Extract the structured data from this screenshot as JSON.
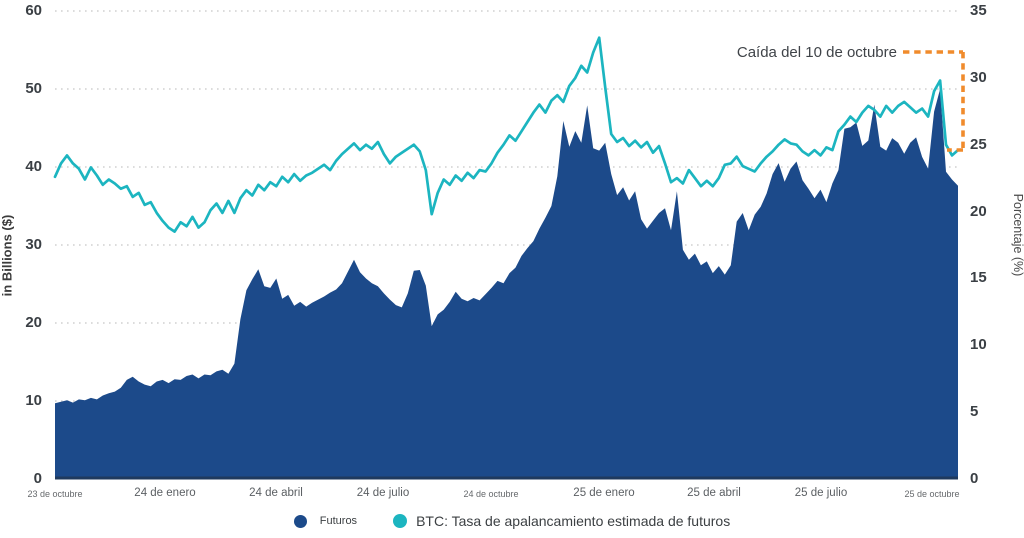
{
  "chart_data": {
    "type": "combo",
    "title": "",
    "x_axis": {
      "labels": [
        {
          "text": "23 de octubre",
          "pos": 55,
          "small": true
        },
        {
          "text": "24 de enero",
          "pos": 165,
          "small": false
        },
        {
          "text": "24 de abril",
          "pos": 276,
          "small": false
        },
        {
          "text": "24 de julio",
          "pos": 383,
          "small": false
        },
        {
          "text": "24 de octubre",
          "pos": 491,
          "small": true
        },
        {
          "text": "25 de enero",
          "pos": 604,
          "small": false
        },
        {
          "text": "25 de abril",
          "pos": 714,
          "small": false
        },
        {
          "text": "25 de julio",
          "pos": 821,
          "small": false
        },
        {
          "text": "25 de octubre",
          "pos": 932,
          "small": true
        }
      ]
    },
    "left_axis": {
      "title": "in Billions ($)",
      "range": [
        0,
        60
      ],
      "ticks": [
        60,
        50,
        40,
        30,
        20,
        10,
        0
      ]
    },
    "right_axis": {
      "title": "Porcentaje (%)",
      "range": [
        0,
        35
      ],
      "ticks": [
        35,
        30,
        25,
        20,
        15,
        10,
        5,
        0
      ]
    },
    "grid": "dotted horizontal lines at left-axis ticks",
    "legend_position": "bottom-center",
    "annotation": {
      "text": "Caída del 10 de octubre",
      "color": "#f08b2c"
    },
    "colors": {
      "grid": "#c8c8c8",
      "tick_text": "#3a3f44",
      "date_text": "#5b5f63",
      "baseline": "#1f3a5e"
    },
    "series": [
      {
        "name": "Futuros",
        "type": "area",
        "axis": "left",
        "unit": "billions_usd",
        "color": "#1c4a8a",
        "values": [
          9.7,
          9.9,
          10.1,
          9.8,
          10.2,
          10.1,
          10.4,
          10.2,
          10.7,
          11.0,
          11.2,
          11.7,
          12.7,
          13.1,
          12.5,
          12.1,
          11.9,
          12.5,
          12.7,
          12.3,
          12.8,
          12.7,
          13.2,
          13.4,
          12.9,
          13.4,
          13.3,
          13.8,
          14.0,
          13.5,
          14.8,
          20.5,
          24.2,
          25.6,
          26.9,
          24.7,
          24.5,
          25.7,
          23.1,
          23.6,
          22.2,
          22.7,
          22.1,
          22.6,
          23.0,
          23.4,
          23.9,
          24.3,
          25.1,
          26.6,
          28.1,
          26.5,
          25.7,
          25.1,
          24.7,
          23.8,
          23.0,
          22.3,
          22.0,
          23.8,
          26.7,
          26.8,
          24.8,
          19.6,
          21.1,
          21.7,
          22.7,
          24.0,
          23.1,
          22.8,
          23.2,
          22.9,
          23.7,
          24.5,
          25.4,
          25.1,
          26.4,
          27.1,
          28.6,
          29.6,
          30.5,
          32.1,
          33.5,
          35.0,
          38.8,
          45.9,
          42.6,
          44.6,
          43.1,
          47.9,
          42.4,
          42.1,
          43.1,
          39.1,
          36.4,
          37.4,
          35.7,
          36.9,
          33.3,
          32.1,
          33.1,
          34.1,
          34.7,
          31.9,
          36.9,
          29.4,
          28.1,
          28.9,
          27.4,
          27.9,
          26.4,
          27.3,
          26.2,
          27.4,
          33.0,
          34.1,
          31.9,
          33.9,
          34.9,
          36.6,
          39.1,
          40.5,
          38.1,
          39.8,
          40.7,
          38.3,
          37.2,
          36.0,
          37.1,
          35.5,
          37.9,
          39.6,
          44.9,
          45.1,
          45.7,
          42.7,
          43.4,
          48.0,
          42.6,
          42.1,
          43.7,
          43.1,
          41.7,
          43.1,
          43.8,
          41.3,
          39.8,
          47.1,
          50.0,
          39.4,
          38.4,
          37.6
        ]
      },
      {
        "name": "BTC: Tasa de apalancamiento estimada de futuros",
        "type": "line",
        "axis": "right",
        "unit": "percent",
        "color": "#1cb5c0",
        "values": [
          22.6,
          23.6,
          24.2,
          23.6,
          23.2,
          22.4,
          23.3,
          22.7,
          22.0,
          22.4,
          22.1,
          21.7,
          21.9,
          21.1,
          21.4,
          20.5,
          20.7,
          19.9,
          19.3,
          18.8,
          18.5,
          19.2,
          18.9,
          19.6,
          18.8,
          19.2,
          20.1,
          20.6,
          19.9,
          20.8,
          19.9,
          21.0,
          21.6,
          21.2,
          22.0,
          21.6,
          22.2,
          21.9,
          22.6,
          22.2,
          22.8,
          22.3,
          22.7,
          22.9,
          23.2,
          23.5,
          23.1,
          23.8,
          24.3,
          24.7,
          25.1,
          24.6,
          25.0,
          24.7,
          25.2,
          24.3,
          23.6,
          24.1,
          24.4,
          24.7,
          25.0,
          24.5,
          23.1,
          19.8,
          21.4,
          22.4,
          22.0,
          22.7,
          22.3,
          22.9,
          22.5,
          23.1,
          23.0,
          23.6,
          24.4,
          25.0,
          25.7,
          25.3,
          26.0,
          26.7,
          27.4,
          28.0,
          27.4,
          28.3,
          28.7,
          28.2,
          29.4,
          30.0,
          30.9,
          30.4,
          31.9,
          33.0,
          29.3,
          25.8,
          25.2,
          25.5,
          24.9,
          25.3,
          24.8,
          25.2,
          24.4,
          24.9,
          23.6,
          22.2,
          22.5,
          22.1,
          23.1,
          22.5,
          21.9,
          22.3,
          21.9,
          22.5,
          23.5,
          23.6,
          24.1,
          23.4,
          23.2,
          23.0,
          23.6,
          24.1,
          24.5,
          25.0,
          25.4,
          25.1,
          25.0,
          24.5,
          24.2,
          24.6,
          24.2,
          24.8,
          24.6,
          26.0,
          26.5,
          27.1,
          26.7,
          27.4,
          27.9,
          27.6,
          27.1,
          27.9,
          27.4,
          27.9,
          28.2,
          27.8,
          27.4,
          27.7,
          27.1,
          29.0,
          29.8,
          25.0,
          24.2,
          24.6
        ]
      }
    ]
  }
}
